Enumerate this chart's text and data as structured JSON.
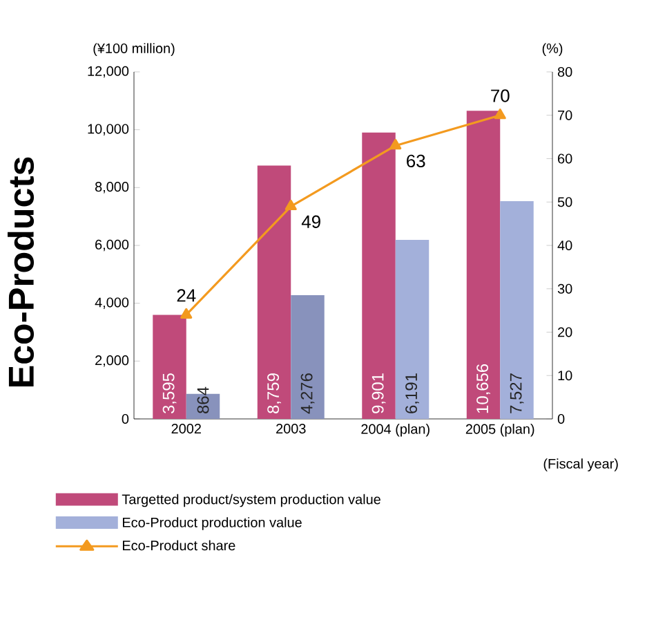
{
  "chart_data": {
    "type": "bar",
    "categories": [
      "2002",
      "2003",
      "2004 (plan)",
      "2005 (plan)"
    ],
    "series": [
      {
        "name": "Targetted product/system production value",
        "color": "#c04a7a",
        "values": [
          3595,
          8759,
          9901,
          10656
        ],
        "value_labels": [
          "3,595",
          "8,759",
          "9,901",
          "10,656"
        ]
      },
      {
        "name": "Eco-Product production value",
        "color": "#a3b0da",
        "colors": [
          "#8892bc",
          "#8892bc",
          "#a3b0da",
          "#a3b0da"
        ],
        "values": [
          864,
          4276,
          6191,
          7527
        ],
        "value_labels": [
          "864",
          "4,276",
          "6,191",
          "7,527"
        ]
      },
      {
        "name": "Eco-Product share",
        "type": "line",
        "axis": "y2",
        "color": "#f39a1f",
        "marker": "triangle",
        "line_style": "solid",
        "values": [
          24,
          49,
          63,
          70
        ],
        "value_labels": [
          "24",
          "49",
          "63",
          "70"
        ]
      }
    ],
    "ylabel": "(¥100 million)",
    "y2label": "(%)",
    "xlabel": "(Fiscal year)",
    "ylim": [
      0,
      12000
    ],
    "yticks": [
      {
        "value": 0,
        "label": "0"
      },
      {
        "value": 2000,
        "label": "2,000"
      },
      {
        "value": 4000,
        "label": "4,000"
      },
      {
        "value": 6000,
        "label": "6,000"
      },
      {
        "value": 8000,
        "label": "8,000"
      },
      {
        "value": 10000,
        "label": "10,000"
      },
      {
        "value": 12000,
        "label": "12,000"
      }
    ],
    "y2lim": [
      0,
      80
    ],
    "y2ticks": [
      0,
      10,
      20,
      30,
      40,
      50,
      60,
      70,
      80
    ],
    "legend": "bottom",
    "annotations": [
      "Eco-Products"
    ]
  }
}
